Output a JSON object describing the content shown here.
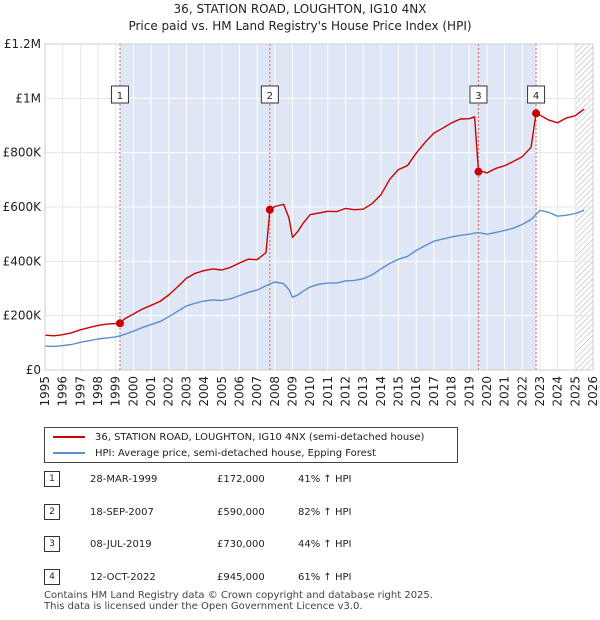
{
  "chart_data": {
    "type": "line",
    "title": "36, STATION ROAD, LOUGHTON, IG10 4NX",
    "subtitle": "Price paid vs. HM Land Registry's House Price Index (HPI)",
    "xlabel": "",
    "ylabel": "",
    "xlim": [
      1995,
      2026
    ],
    "ylim": [
      0,
      1200000
    ],
    "grid": true,
    "x_ticks": [
      "1995",
      "1996",
      "1997",
      "1998",
      "1999",
      "2000",
      "2001",
      "2002",
      "2003",
      "2004",
      "2005",
      "2006",
      "2007",
      "2008",
      "2009",
      "2010",
      "2011",
      "2012",
      "2013",
      "2014",
      "2015",
      "2016",
      "2017",
      "2018",
      "2019",
      "2020",
      "2021",
      "2022",
      "2023",
      "2024",
      "2025",
      "2026"
    ],
    "y_ticks": [
      {
        "value": 0,
        "label": "£0"
      },
      {
        "value": 200000,
        "label": "£200K"
      },
      {
        "value": 400000,
        "label": "£400K"
      },
      {
        "value": 600000,
        "label": "£600K"
      },
      {
        "value": 800000,
        "label": "£800K"
      },
      {
        "value": 1000000,
        "label": "£1M"
      },
      {
        "value": 1200000,
        "label": "£1.2M"
      }
    ],
    "shaded_region": [
      1999.24,
      2022.78
    ],
    "hatched_from": 2025.0,
    "series": [
      {
        "name": "36, STATION ROAD, LOUGHTON, IG10 4NX (semi-detached house)",
        "color": "#cc0000",
        "x": [
          1995.0,
          1995.5,
          1996.0,
          1996.5,
          1997.0,
          1997.5,
          1998.0,
          1998.5,
          1999.24,
          1999.5,
          2000.0,
          2000.5,
          2001.0,
          2001.5,
          2002.0,
          2002.5,
          2003.0,
          2003.5,
          2004.0,
          2004.5,
          2005.0,
          2005.5,
          2006.0,
          2006.5,
          2007.0,
          2007.5,
          2007.72,
          2008.0,
          2008.5,
          2008.8,
          2009.0,
          2009.3,
          2009.6,
          2010.0,
          2010.5,
          2011.0,
          2011.5,
          2012.0,
          2012.5,
          2013.0,
          2013.5,
          2014.0,
          2014.5,
          2015.0,
          2015.5,
          2016.0,
          2016.5,
          2017.0,
          2017.5,
          2018.0,
          2018.5,
          2019.0,
          2019.3,
          2019.52,
          2019.8,
          2020.0,
          2020.5,
          2021.0,
          2021.5,
          2022.0,
          2022.5,
          2022.78,
          2023.0,
          2023.5,
          2024.0,
          2024.5,
          2025.0,
          2025.5
        ],
        "values": [
          128000,
          126000,
          130000,
          137000,
          148000,
          156000,
          164000,
          169000,
          172000,
          188000,
          206000,
          224000,
          238000,
          252000,
          276000,
          306000,
          338000,
          356000,
          366000,
          372000,
          368000,
          378000,
          394000,
          408000,
          406000,
          432000,
          590000,
          602000,
          610000,
          560000,
          488000,
          510000,
          540000,
          572000,
          578000,
          584000,
          583000,
          595000,
          590000,
          592000,
          612000,
          645000,
          702000,
          738000,
          752000,
          798000,
          838000,
          872000,
          890000,
          910000,
          924000,
          925000,
          932000,
          730000,
          730000,
          725000,
          742000,
          752000,
          768000,
          785000,
          820000,
          945000,
          938000,
          920000,
          910000,
          928000,
          936000,
          960000
        ]
      },
      {
        "name": "HPI: Average price, semi-detached house, Epping Forest",
        "color": "#5b8fcf",
        "x": [
          1995.0,
          1995.5,
          1996.0,
          1996.5,
          1997.0,
          1997.5,
          1998.0,
          1998.5,
          1999.0,
          1999.5,
          2000.0,
          2000.5,
          2001.0,
          2001.5,
          2002.0,
          2002.5,
          2003.0,
          2003.5,
          2004.0,
          2004.5,
          2005.0,
          2005.5,
          2006.0,
          2006.5,
          2007.0,
          2007.5,
          2008.0,
          2008.5,
          2008.8,
          2009.0,
          2009.3,
          2009.6,
          2010.0,
          2010.5,
          2011.0,
          2011.5,
          2012.0,
          2012.5,
          2013.0,
          2013.5,
          2014.0,
          2014.5,
          2015.0,
          2015.5,
          2016.0,
          2016.5,
          2017.0,
          2017.5,
          2018.0,
          2018.5,
          2019.0,
          2019.5,
          2020.0,
          2020.5,
          2021.0,
          2021.5,
          2022.0,
          2022.5,
          2023.0,
          2023.5,
          2024.0,
          2024.5,
          2025.0,
          2025.5
        ],
        "values": [
          88000,
          87000,
          90000,
          94000,
          102000,
          108000,
          114000,
          118000,
          122000,
          131000,
          143000,
          156000,
          167000,
          178000,
          196000,
          216000,
          236000,
          246000,
          254000,
          258000,
          256000,
          262000,
          274000,
          286000,
          294000,
          310000,
          324000,
          318000,
          296000,
          268000,
          276000,
          290000,
          306000,
          316000,
          320000,
          320000,
          328000,
          330000,
          336000,
          350000,
          372000,
          392000,
          408000,
          418000,
          440000,
          458000,
          474000,
          482000,
          490000,
          496000,
          500000,
          506000,
          500000,
          506000,
          514000,
          522000,
          536000,
          554000,
          588000,
          580000,
          566000,
          570000,
          576000,
          588000
        ]
      }
    ],
    "sales": [
      {
        "num": "1",
        "x": 1999.24,
        "value": 172000
      },
      {
        "num": "2",
        "x": 2007.72,
        "value": 590000
      },
      {
        "num": "3",
        "x": 2019.52,
        "value": 730000
      },
      {
        "num": "4",
        "x": 2022.78,
        "value": 945000
      }
    ]
  },
  "legend": {
    "property_label": "36, STATION ROAD, LOUGHTON, IG10 4NX (semi-detached house)",
    "hpi_label": "HPI: Average price, semi-detached house, Epping Forest"
  },
  "sales_table": [
    {
      "num": "1",
      "date": "28-MAR-1999",
      "price": "£172,000",
      "hpi": "41% ↑ HPI"
    },
    {
      "num": "2",
      "date": "18-SEP-2007",
      "price": "£590,000",
      "hpi": "82% ↑ HPI"
    },
    {
      "num": "3",
      "date": "08-JUL-2019",
      "price": "£730,000",
      "hpi": "44% ↑ HPI"
    },
    {
      "num": "4",
      "date": "12-OCT-2022",
      "price": "£945,000",
      "hpi": "61% ↑ HPI"
    }
  ],
  "footer": {
    "line1": "Contains HM Land Registry data © Crown copyright and database right 2025.",
    "line2": "This data is licensed under the Open Government Licence v3.0."
  }
}
